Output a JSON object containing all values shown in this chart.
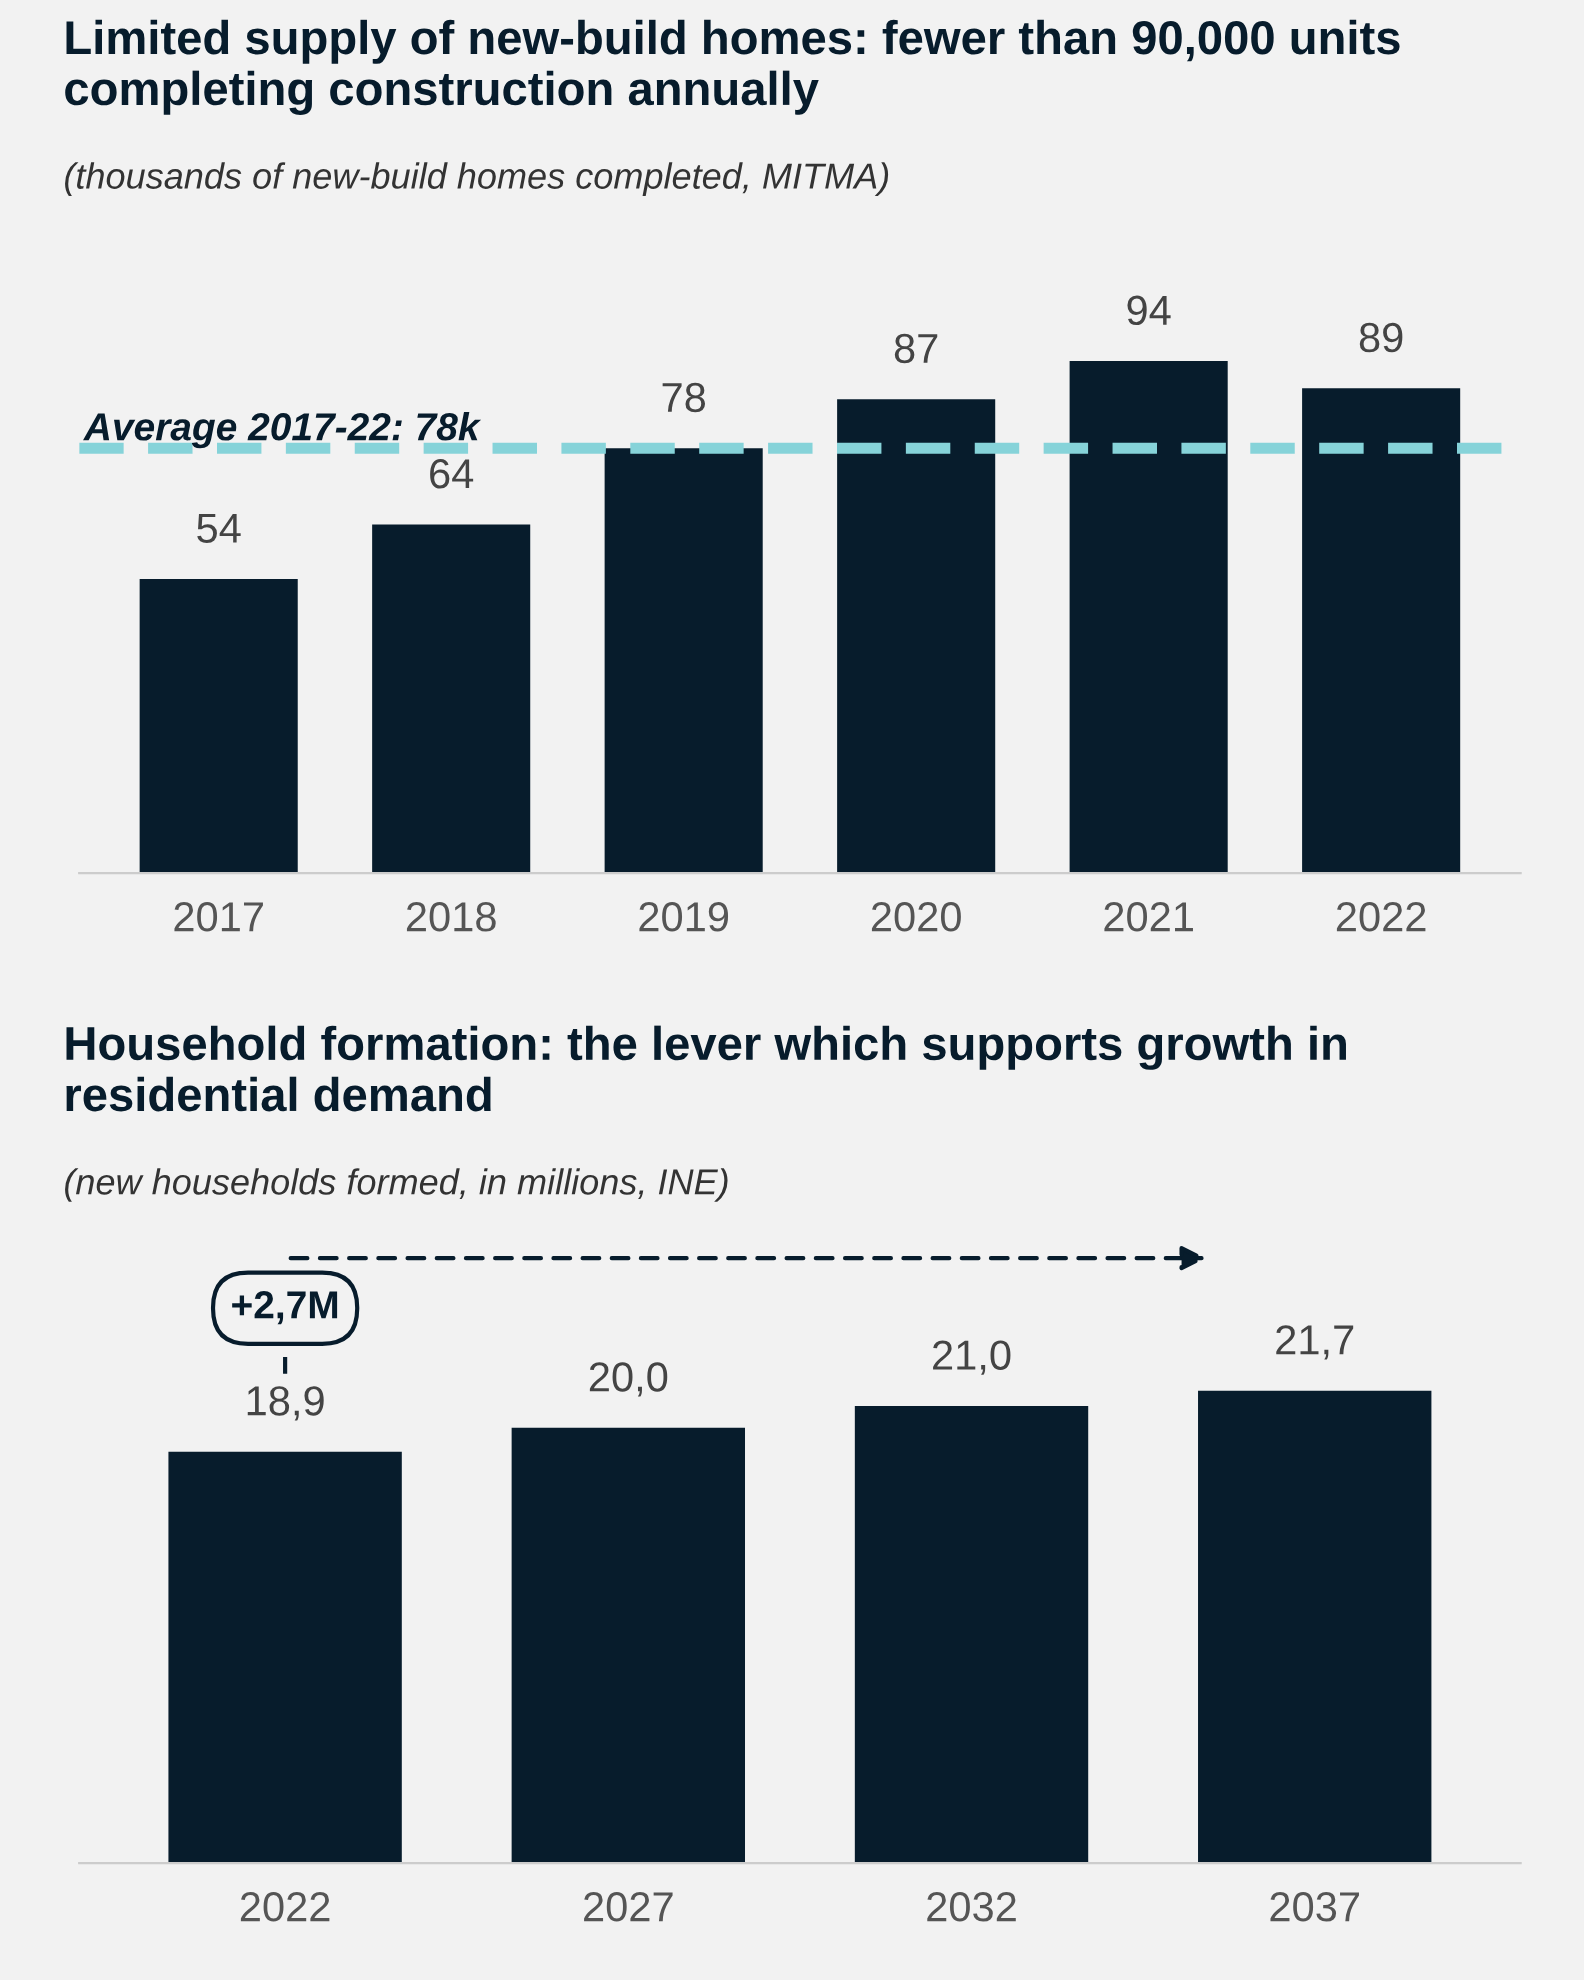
{
  "chart_data": [
    {
      "type": "bar",
      "title": "Limited supply of new-build homes: fewer than 90,000 units completing construction annually",
      "subtitle": "(thousands of new-build homes completed, MITMA)",
      "categories": [
        "2017",
        "2018",
        "2019",
        "2020",
        "2021",
        "2022"
      ],
      "values": [
        54,
        64,
        78,
        87,
        94,
        89
      ],
      "color": "#071c2c",
      "data_labels": true,
      "grid": false,
      "legend": false,
      "ref_lines": [
        {
          "axis": "y",
          "value": 78,
          "label": "Average 2017-22: 78k",
          "color": "#86d3d9",
          "line_style": "dashed"
        }
      ]
    },
    {
      "type": "bar",
      "title": "Household formation: the lever which supports growth in residential demand",
      "subtitle": "(new households formed, in millions, INE)",
      "categories": [
        "2022",
        "2027",
        "2032",
        "2037"
      ],
      "values": [
        18.9,
        20.0,
        21.0,
        21.7
      ],
      "value_labels": [
        "18,9",
        "20,0",
        "21,0",
        "21,7"
      ],
      "color": "#071c2c",
      "grid": false,
      "legend": false,
      "annotations": [
        "+2,7M"
      ]
    }
  ]
}
